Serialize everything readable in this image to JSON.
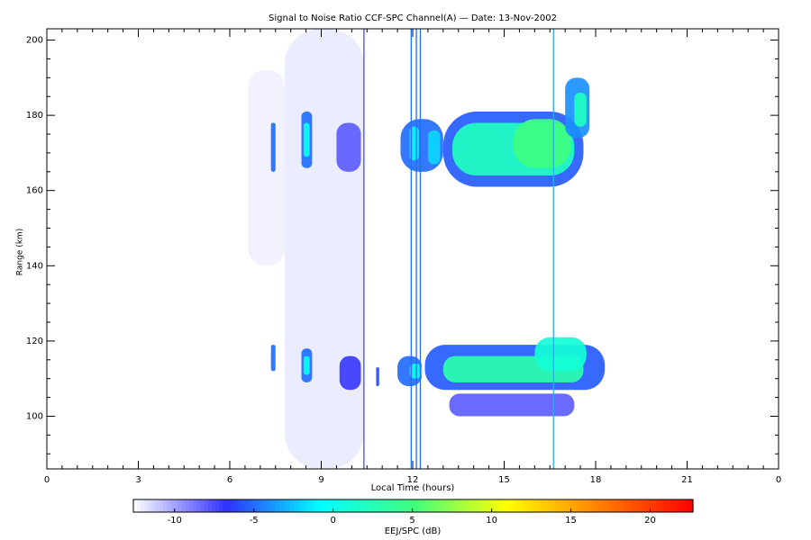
{
  "chart_data": {
    "type": "heatmap",
    "title": "Signal to Noise Ratio CCF-SPC Channel(A) — Date: 13-Nov-2002",
    "x_label": "Local Time (hours)",
    "y_label": "Range (km)",
    "xlim": [
      0,
      24
    ],
    "xticks": [
      0,
      3,
      6,
      9,
      12,
      15,
      18,
      21,
      {
        "value": 24,
        "label": "0"
      }
    ],
    "ylim": [
      86,
      203
    ],
    "yticks": [
      100,
      120,
      140,
      160,
      180,
      200
    ],
    "clim": [
      -12.6,
      22.7
    ],
    "cticks": [
      -10,
      -5,
      0,
      5,
      10,
      15,
      20
    ],
    "colorbar_label": "EEJ/SPC (dB)",
    "colorscale": [
      "#ffffff",
      "#3030ff",
      "#00ffff",
      "#40ff80",
      "#ffff00",
      "#ff8000",
      "#ff0000"
    ],
    "cells": [
      {
        "x": [
          7.8,
          10.4
        ],
        "y": [
          86,
          203
        ],
        "value": -12
      },
      {
        "x": [
          6.6,
          7.8
        ],
        "y": [
          140,
          192
        ],
        "value": -12.2
      },
      {
        "x": [
          9.5,
          10.3
        ],
        "y": [
          165,
          178
        ],
        "value": -8
      },
      {
        "x": [
          9.6,
          10.3
        ],
        "y": [
          107,
          116
        ],
        "value": -7
      },
      {
        "x": [
          7.35,
          7.5
        ],
        "y": [
          165,
          178
        ],
        "value": -5
      },
      {
        "x": [
          7.35,
          7.5
        ],
        "y": [
          112,
          119
        ],
        "value": -5
      },
      {
        "x": [
          8.35,
          8.7
        ],
        "y": [
          166,
          181
        ],
        "value": -5
      },
      {
        "x": [
          8.42,
          8.62
        ],
        "y": [
          169,
          178
        ],
        "value": 0
      },
      {
        "x": [
          8.35,
          8.7
        ],
        "y": [
          109,
          118
        ],
        "value": -5
      },
      {
        "x": [
          8.42,
          8.62
        ],
        "y": [
          111,
          116
        ],
        "value": 0
      },
      {
        "x": [
          10.8,
          10.9
        ],
        "y": [
          108,
          113
        ],
        "value": -6
      },
      {
        "x": [
          11.5,
          12.3
        ],
        "y": [
          108,
          116
        ],
        "value": -5
      },
      {
        "x": [
          11.9,
          12.3
        ],
        "y": [
          110,
          114
        ],
        "value": 0
      },
      {
        "x": [
          11.6,
          13.0
        ],
        "y": [
          165,
          179
        ],
        "value": -5
      },
      {
        "x": [
          11.9,
          12.2
        ],
        "y": [
          168,
          177
        ],
        "value": -1
      },
      {
        "x": [
          12.5,
          12.9
        ],
        "y": [
          167,
          176
        ],
        "value": -2
      },
      {
        "x": [
          13.0,
          17.6
        ],
        "y": [
          161,
          181
        ],
        "value": -5.5
      },
      {
        "x": [
          13.3,
          17.3
        ],
        "y": [
          164,
          178
        ],
        "value": 2
      },
      {
        "x": [
          15.3,
          17.2
        ],
        "y": [
          166,
          179
        ],
        "value": 5
      },
      {
        "x": [
          17.0,
          17.8
        ],
        "y": [
          174,
          190
        ],
        "value": -4
      },
      {
        "x": [
          17.3,
          17.7
        ],
        "y": [
          177,
          186
        ],
        "value": 2
      },
      {
        "x": [
          12.4,
          18.3
        ],
        "y": [
          107,
          119
        ],
        "value": -5.5
      },
      {
        "x": [
          13.0,
          17.6
        ],
        "y": [
          109,
          116
        ],
        "value": 3
      },
      {
        "x": [
          16.0,
          17.7
        ],
        "y": [
          112,
          121
        ],
        "value": 1
      },
      {
        "x": [
          13.2,
          17.3
        ],
        "y": [
          100,
          106
        ],
        "value": -8
      }
    ],
    "lines": [
      {
        "x": 10.4,
        "color": "#3a4ef0"
      },
      {
        "x": 11.95,
        "color": "#1f6ff0"
      },
      {
        "x": 12.12,
        "color": "#1f6ff0"
      },
      {
        "x": 12.25,
        "color": "#1f6ff0"
      },
      {
        "x": 16.62,
        "color": "#2aaef0"
      }
    ]
  }
}
